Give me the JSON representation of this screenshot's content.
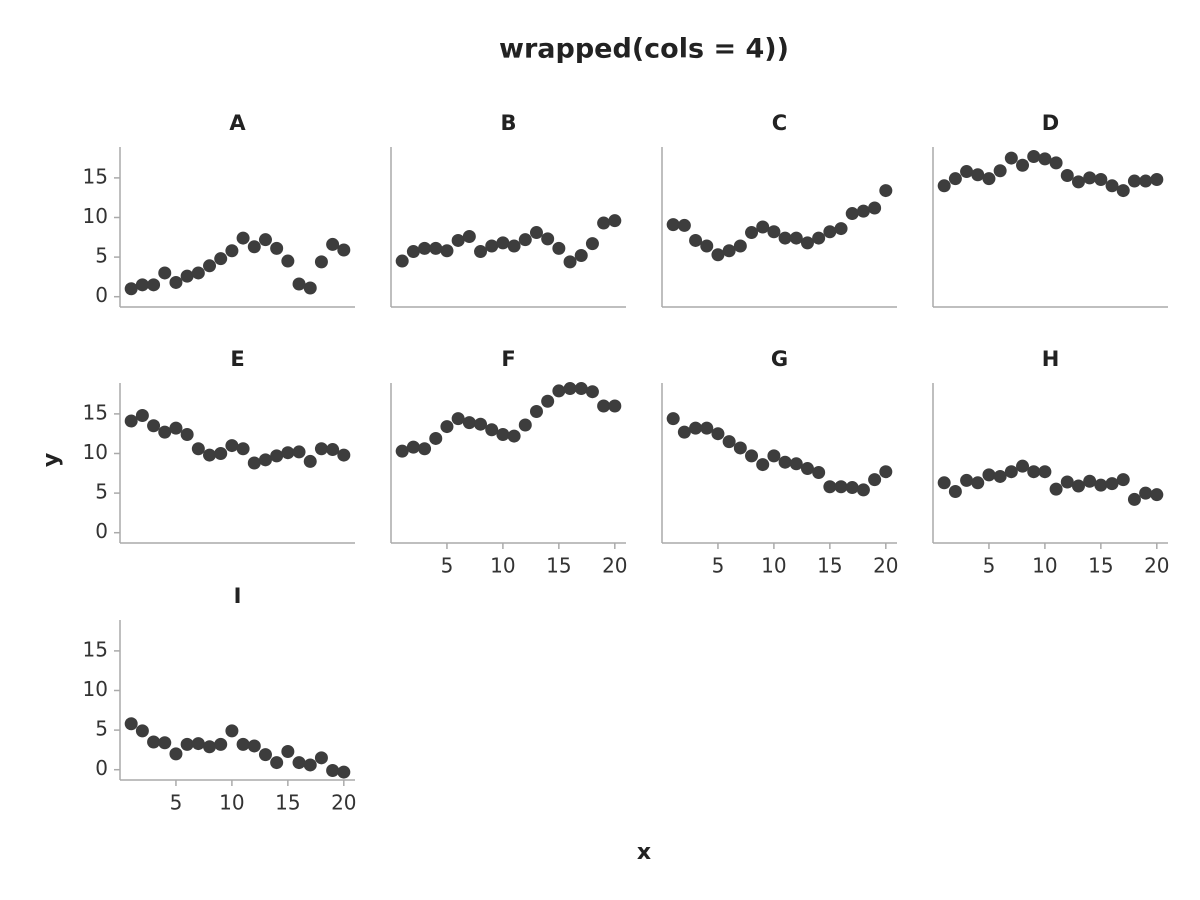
{
  "chart_data": {
    "type": "scatter",
    "title": "wrapped(cols = 4))",
    "xlabel": "x",
    "ylabel": "y",
    "columns": 4,
    "color": "#3d3d3d",
    "xlim": [
      0,
      21
    ],
    "ylim": [
      -1.3,
      18.9
    ],
    "xticks": [
      5,
      10,
      15,
      20
    ],
    "yticks": [
      0,
      5,
      10,
      15
    ],
    "x": [
      1,
      2,
      3,
      4,
      5,
      6,
      7,
      8,
      9,
      10,
      11,
      12,
      13,
      14,
      15,
      16,
      17,
      18,
      19,
      20
    ],
    "series": [
      {
        "name": "A",
        "values": [
          1.0,
          1.5,
          1.5,
          3.0,
          1.8,
          2.6,
          3.0,
          3.9,
          4.8,
          5.8,
          7.4,
          6.3,
          7.2,
          6.1,
          4.5,
          1.6,
          1.1,
          4.4,
          6.6,
          5.9
        ]
      },
      {
        "name": "B",
        "values": [
          4.5,
          5.7,
          6.1,
          6.1,
          5.8,
          7.1,
          7.6,
          5.7,
          6.4,
          6.8,
          6.4,
          7.2,
          8.1,
          7.3,
          6.1,
          4.4,
          5.2,
          6.7,
          9.3,
          9.6
        ]
      },
      {
        "name": "C",
        "values": [
          9.1,
          9.0,
          7.1,
          6.4,
          5.3,
          5.8,
          6.4,
          8.1,
          8.8,
          8.2,
          7.4,
          7.4,
          6.8,
          7.4,
          8.2,
          8.6,
          10.5,
          10.8,
          11.2,
          13.4
        ]
      },
      {
        "name": "D",
        "values": [
          14.0,
          14.9,
          15.8,
          15.4,
          14.9,
          15.9,
          17.5,
          16.6,
          17.7,
          17.4,
          16.9,
          15.3,
          14.5,
          15.0,
          14.8,
          14.0,
          13.4,
          14.6,
          14.6,
          14.8
        ]
      },
      {
        "name": "E",
        "values": [
          14.1,
          14.8,
          13.5,
          12.7,
          13.2,
          12.4,
          10.6,
          9.8,
          10.0,
          11.0,
          10.6,
          8.8,
          9.2,
          9.7,
          10.1,
          10.2,
          9.0,
          10.6,
          10.5,
          9.8
        ]
      },
      {
        "name": "F",
        "values": [
          10.3,
          10.8,
          10.6,
          11.9,
          13.4,
          14.4,
          13.9,
          13.7,
          13.0,
          12.4,
          12.2,
          13.6,
          15.3,
          16.6,
          17.9,
          18.2,
          18.2,
          17.8,
          16.0,
          16.0
        ]
      },
      {
        "name": "G",
        "values": [
          14.4,
          12.7,
          13.2,
          13.2,
          12.5,
          11.5,
          10.7,
          9.7,
          8.6,
          9.7,
          8.9,
          8.7,
          8.1,
          7.6,
          5.8,
          5.8,
          5.7,
          5.4,
          6.7,
          7.7
        ]
      },
      {
        "name": "H",
        "values": [
          6.3,
          5.2,
          6.6,
          6.3,
          7.3,
          7.1,
          7.7,
          8.4,
          7.7,
          7.7,
          5.5,
          6.4,
          5.9,
          6.5,
          6.0,
          6.2,
          6.7,
          4.2,
          5.0,
          4.8
        ]
      },
      {
        "name": "I",
        "values": [
          5.8,
          4.9,
          3.5,
          3.4,
          2.0,
          3.2,
          3.3,
          2.9,
          3.2,
          4.9,
          3.2,
          3.0,
          1.9,
          0.9,
          2.3,
          0.9,
          0.6,
          1.5,
          -0.1,
          -0.3
        ]
      }
    ]
  }
}
